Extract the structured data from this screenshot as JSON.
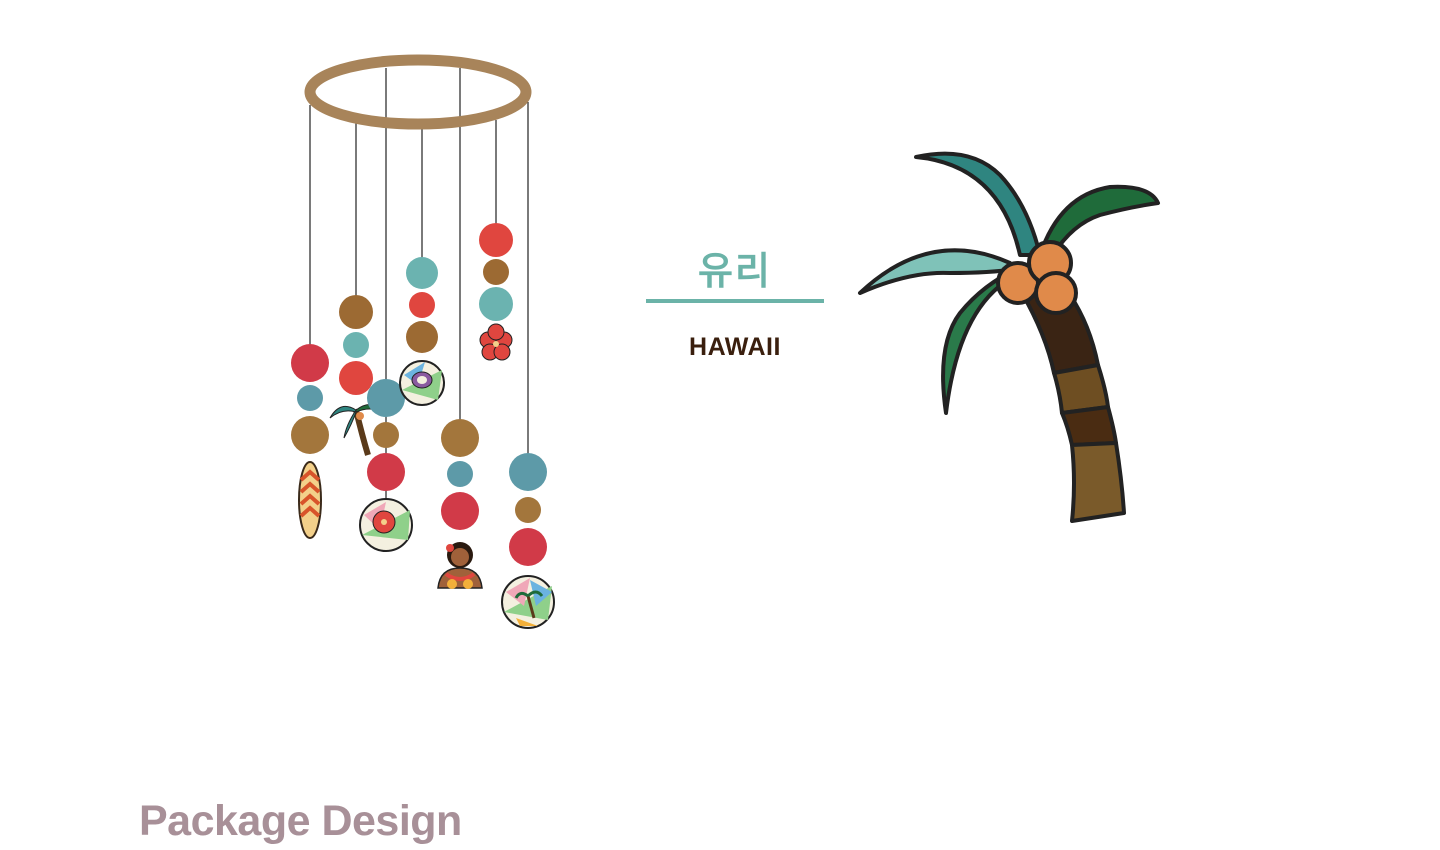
{
  "label": {
    "korean_title": "유리",
    "subtitle": "HAWAII"
  },
  "section": {
    "heading": "Package Design"
  },
  "colors": {
    "teal_accent": "#6bb3a8",
    "dark_brown_text": "#3a1f0e",
    "heading_mauve": "#a89098",
    "hoop_wood": "#a8845a",
    "bead_red": "#d9403f",
    "bead_brown": "#9c6a33",
    "bead_teal": "#6bb3b0",
    "leaf_teal": "#2f8580",
    "leaf_green": "#1f6b3a",
    "coconut_orange": "#e08a4a"
  },
  "illustrations": {
    "mobile": "hawaii-hanging-mobile",
    "palm": "stained-glass-palm-tree"
  }
}
